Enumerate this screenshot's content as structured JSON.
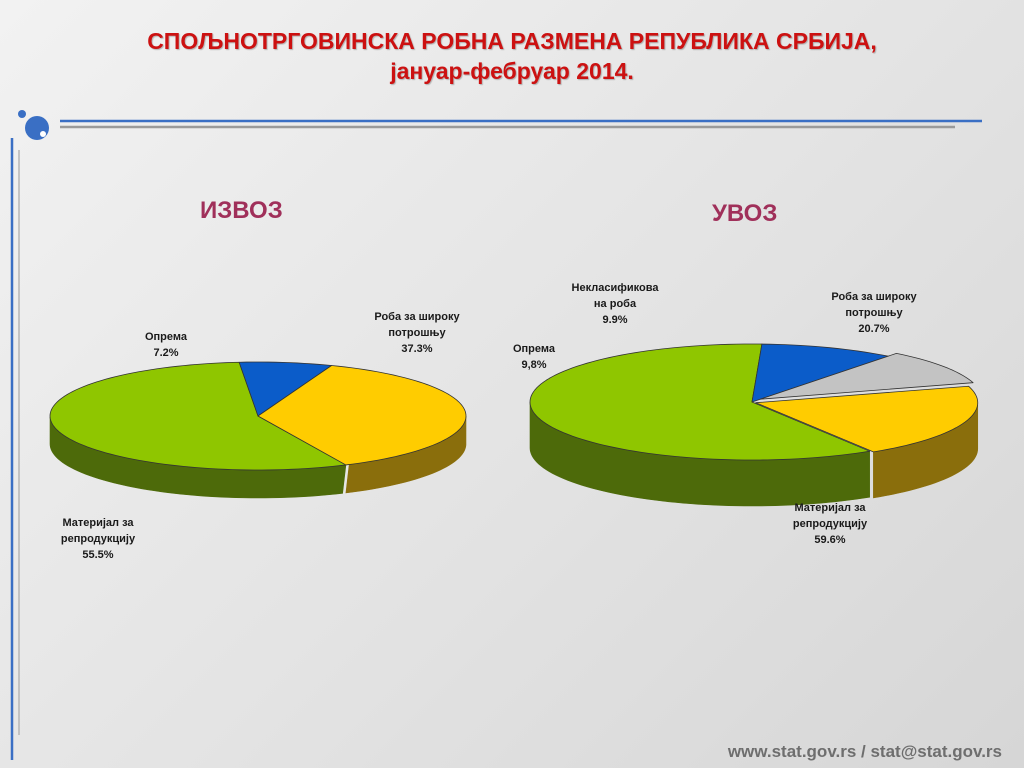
{
  "title_line1": "СПОЉНОТРГОВИНСКА РОБНА РАЗМЕНА  РЕПУБЛИКА СРБИЈА,",
  "title_line2": "јануар-фебруар  2014.",
  "footer": "www.stat.gov.rs / stat@stat.gov.rs",
  "colors": {
    "accent_blue": "#3a6fc4",
    "title_red": "#cc1111",
    "chart_title": "#a0305a"
  },
  "chart_data": [
    {
      "type": "pie",
      "title": "ИЗВОЗ",
      "slices": [
        {
          "label_lines": [
            "Материјал за",
            "репродукцију"
          ],
          "value_text": "55.5%",
          "value": 55.5,
          "color": "#8fc600",
          "side": "#4d6a0a"
        },
        {
          "label_lines": [
            "Опрема"
          ],
          "value_text": "7.2%",
          "value": 7.2,
          "color": "#0b5cc9",
          "side": "#06306a"
        },
        {
          "label_lines": [
            "Роба за широку",
            "потрошњу"
          ],
          "value_text": "37.3%",
          "value": 37.3,
          "color": "#ffcc00",
          "side": "#8a6e0c"
        }
      ]
    },
    {
      "type": "pie",
      "title": "УВОЗ",
      "slices": [
        {
          "label_lines": [
            "Материјал за",
            "репродукцију"
          ],
          "value_text": "59.6%",
          "value": 59.6,
          "color": "#8fc600",
          "side": "#4d6a0a"
        },
        {
          "label_lines": [
            "Опрема"
          ],
          "value_text": "9,8%",
          "value": 9.8,
          "color": "#0b5cc9",
          "side": "#06306a"
        },
        {
          "label_lines": [
            "Некласификова",
            "на роба"
          ],
          "value_text": "9.9%",
          "value": 9.9,
          "color": "#c3c3c3",
          "side": "#7a7a7a"
        },
        {
          "label_lines": [
            "Роба за широку",
            "потрошњу"
          ],
          "value_text": "20.7%",
          "value": 20.7,
          "color": "#ffcc00",
          "side": "#8a6e0c"
        }
      ]
    }
  ]
}
